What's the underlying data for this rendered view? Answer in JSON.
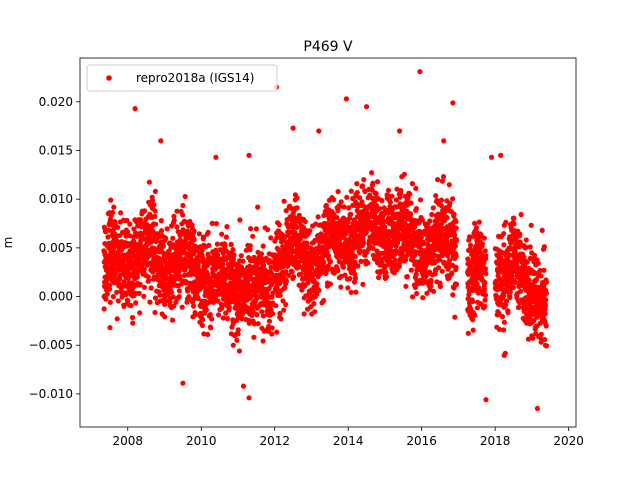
{
  "chart_data": {
    "type": "scatter",
    "title": "P469 V",
    "xlabel": "",
    "ylabel": "m",
    "xlim": [
      2006.7,
      2020.2
    ],
    "ylim": [
      -0.0134,
      0.0245
    ],
    "x_ticks": [
      2008,
      2010,
      2012,
      2014,
      2016,
      2018,
      2020
    ],
    "y_ticks": [
      -0.01,
      -0.005,
      0.0,
      0.005,
      0.01,
      0.015,
      0.02
    ],
    "y_tick_labels": [
      "−0.010",
      "−0.005",
      "0.000",
      "0.005",
      "0.010",
      "0.015",
      "0.020"
    ],
    "grid": false,
    "legend": "top-left",
    "series": [
      {
        "name": "repro2018a (IGS14)",
        "color": "#ff0000",
        "marker": "circle",
        "segments": [
          {
            "start": 2007.35,
            "end": 2011.95,
            "baseline": [
              [
                2007.35,
                0.003
              ],
              [
                2008.0,
                0.004
              ],
              [
                2008.5,
                0.0045
              ],
              [
                2009.0,
                0.004
              ],
              [
                2009.5,
                0.0035
              ],
              [
                2010.0,
                0.002
              ],
              [
                2010.5,
                0.001
              ],
              [
                2011.0,
                0.0015
              ],
              [
                2011.5,
                0.0005
              ],
              [
                2011.95,
                0.001
              ]
            ],
            "spread": 0.004
          },
          {
            "start": 2012.0,
            "end": 2016.95,
            "baseline": [
              [
                2012.0,
                0.004
              ],
              [
                2012.5,
                0.0045
              ],
              [
                2013.0,
                0.004
              ],
              [
                2013.5,
                0.005
              ],
              [
                2014.0,
                0.0065
              ],
              [
                2014.5,
                0.007
              ],
              [
                2015.0,
                0.007
              ],
              [
                2015.5,
                0.006
              ],
              [
                2016.0,
                0.0055
              ],
              [
                2016.5,
                0.005
              ],
              [
                2016.95,
                0.0055
              ]
            ],
            "spread": 0.0038
          },
          {
            "start": 2017.25,
            "end": 2017.75,
            "baseline": [
              [
                2017.25,
                0.002
              ],
              [
                2017.5,
                0.0025
              ],
              [
                2017.75,
                0.0015
              ]
            ],
            "spread": 0.0045
          },
          {
            "start": 2018.0,
            "end": 2019.4,
            "baseline": [
              [
                2018.0,
                0.002
              ],
              [
                2018.5,
                0.003
              ],
              [
                2019.0,
                0.002
              ],
              [
                2019.4,
                -0.001
              ]
            ],
            "spread": 0.0042
          }
        ],
        "outliers": [
          [
            2008.2,
            0.0193
          ],
          [
            2012.05,
            0.0215
          ],
          [
            2013.2,
            0.017
          ],
          [
            2013.95,
            0.0203
          ],
          [
            2014.5,
            0.0195
          ],
          [
            2015.4,
            0.017
          ],
          [
            2015.95,
            0.0231
          ],
          [
            2016.85,
            0.0199
          ],
          [
            2011.15,
            -0.0092
          ],
          [
            2011.3,
            -0.0104
          ],
          [
            2009.5,
            -0.0089
          ],
          [
            2017.75,
            -0.0106
          ],
          [
            2019.15,
            -0.0115
          ],
          [
            2016.6,
            0.016
          ],
          [
            2017.9,
            0.0143
          ],
          [
            2018.15,
            0.0145
          ],
          [
            2008.9,
            0.016
          ],
          [
            2010.4,
            0.0143
          ],
          [
            2011.3,
            0.0145
          ],
          [
            2012.5,
            0.0173
          ]
        ]
      }
    ]
  }
}
